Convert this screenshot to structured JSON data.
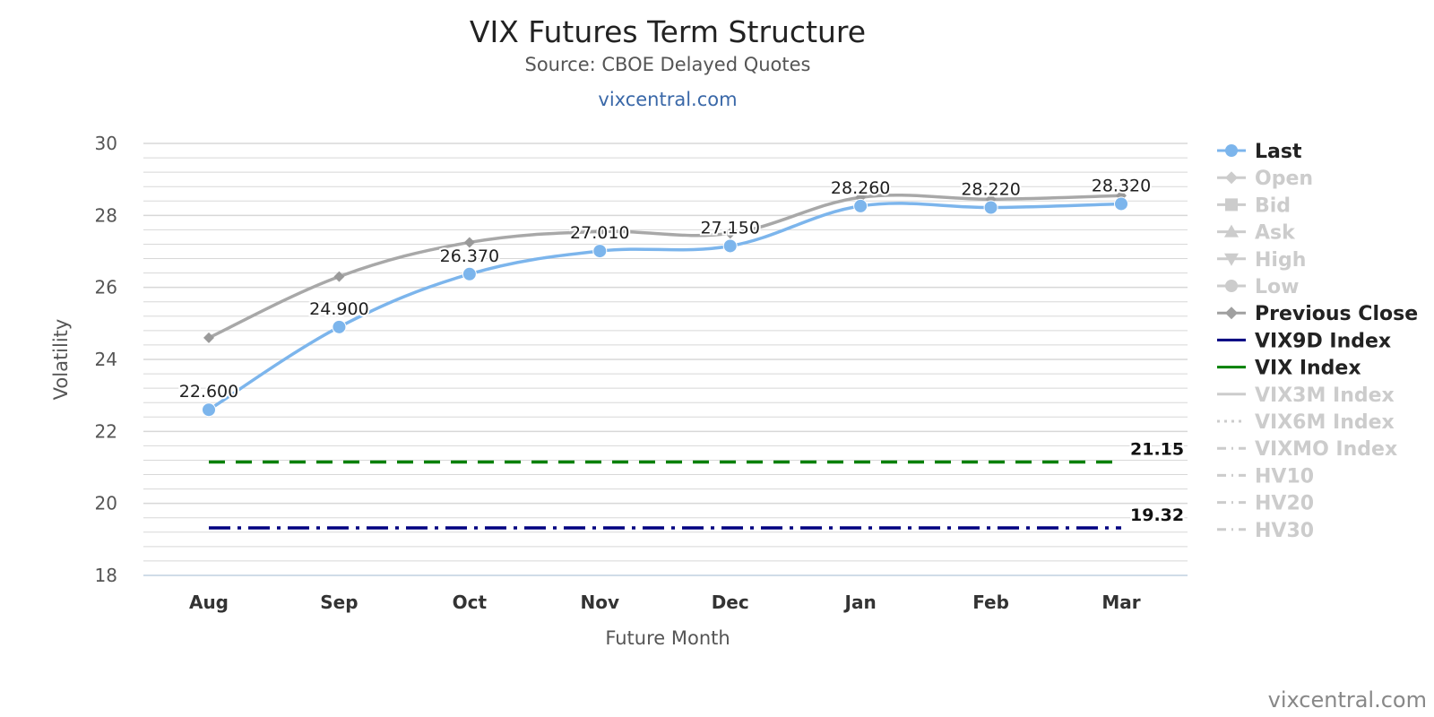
{
  "chart_data": {
    "type": "line",
    "title": "VIX Futures Term Structure",
    "subtitle": "Source: CBOE Delayed Quotes",
    "top_credit": "vixcentral.com",
    "bottom_credit": "vixcentral.com",
    "xlabel": "Future Month",
    "ylabel": "Volatility",
    "categories": [
      "Aug",
      "Sep",
      "Oct",
      "Nov",
      "Dec",
      "Jan",
      "Feb",
      "Mar"
    ],
    "ylim": [
      18,
      30
    ],
    "yticks": [
      18,
      20,
      22,
      24,
      26,
      28,
      30
    ],
    "grid": true,
    "legend_position": "right",
    "series": [
      {
        "name": "Last",
        "values": [
          22.6,
          24.9,
          26.37,
          27.01,
          27.15,
          28.26,
          28.22,
          28.32
        ],
        "labels": [
          "22.600",
          "24.900",
          "26.370",
          "27.010",
          "27.150",
          "28.260",
          "28.220",
          "28.320"
        ],
        "color": "#7cb5ec"
      },
      {
        "name": "Previous Close",
        "values": [
          24.6,
          26.3,
          27.25,
          27.55,
          27.5,
          28.5,
          28.45,
          28.55
        ],
        "color": "#a8a8a8"
      }
    ],
    "reference_lines": [
      {
        "name": "VIX Index",
        "value": 21.15,
        "label": "21.15",
        "color": "#008000",
        "dash": "dash"
      },
      {
        "name": "VIX9D Index",
        "value": 19.32,
        "label": "19.32",
        "color": "#000080",
        "dash": "dashdot"
      }
    ],
    "legend": [
      {
        "label": "Last",
        "visible": true,
        "marker": "circle",
        "line": "solid",
        "color": "#7cb5ec"
      },
      {
        "label": "Open",
        "visible": false,
        "marker": "diamond",
        "line": "solid",
        "color": "#cccccc"
      },
      {
        "label": "Bid",
        "visible": false,
        "marker": "square",
        "line": "solid",
        "color": "#cccccc"
      },
      {
        "label": "Ask",
        "visible": false,
        "marker": "triangle",
        "line": "solid",
        "color": "#cccccc"
      },
      {
        "label": "High",
        "visible": false,
        "marker": "triangle-down",
        "line": "solid",
        "color": "#cccccc"
      },
      {
        "label": "Low",
        "visible": false,
        "marker": "circle",
        "line": "solid",
        "color": "#cccccc"
      },
      {
        "label": "Previous Close",
        "visible": true,
        "marker": "diamond",
        "line": "solid",
        "color": "#a0a0a0"
      },
      {
        "label": "VIX9D Index",
        "visible": true,
        "marker": "none",
        "line": "solid",
        "color": "#000080"
      },
      {
        "label": "VIX Index",
        "visible": true,
        "marker": "none",
        "line": "solid",
        "color": "#008000"
      },
      {
        "label": "VIX3M Index",
        "visible": false,
        "marker": "none",
        "line": "solid",
        "color": "#cccccc"
      },
      {
        "label": "VIX6M Index",
        "visible": false,
        "marker": "none",
        "line": "dotted",
        "color": "#cccccc"
      },
      {
        "label": "VIXMO Index",
        "visible": false,
        "marker": "none",
        "line": "dashdot",
        "color": "#cccccc"
      },
      {
        "label": "HV10",
        "visible": false,
        "marker": "none",
        "line": "dashdot",
        "color": "#cccccc"
      },
      {
        "label": "HV20",
        "visible": false,
        "marker": "none",
        "line": "dashdot",
        "color": "#cccccc"
      },
      {
        "label": "HV30",
        "visible": false,
        "marker": "none",
        "line": "dashdot",
        "color": "#cccccc"
      }
    ]
  },
  "colors": {
    "grid": "#d8d8d8",
    "axis": "#c0d0e0",
    "legend_visible_text": "#222222",
    "legend_hidden_text": "#cccccc"
  }
}
